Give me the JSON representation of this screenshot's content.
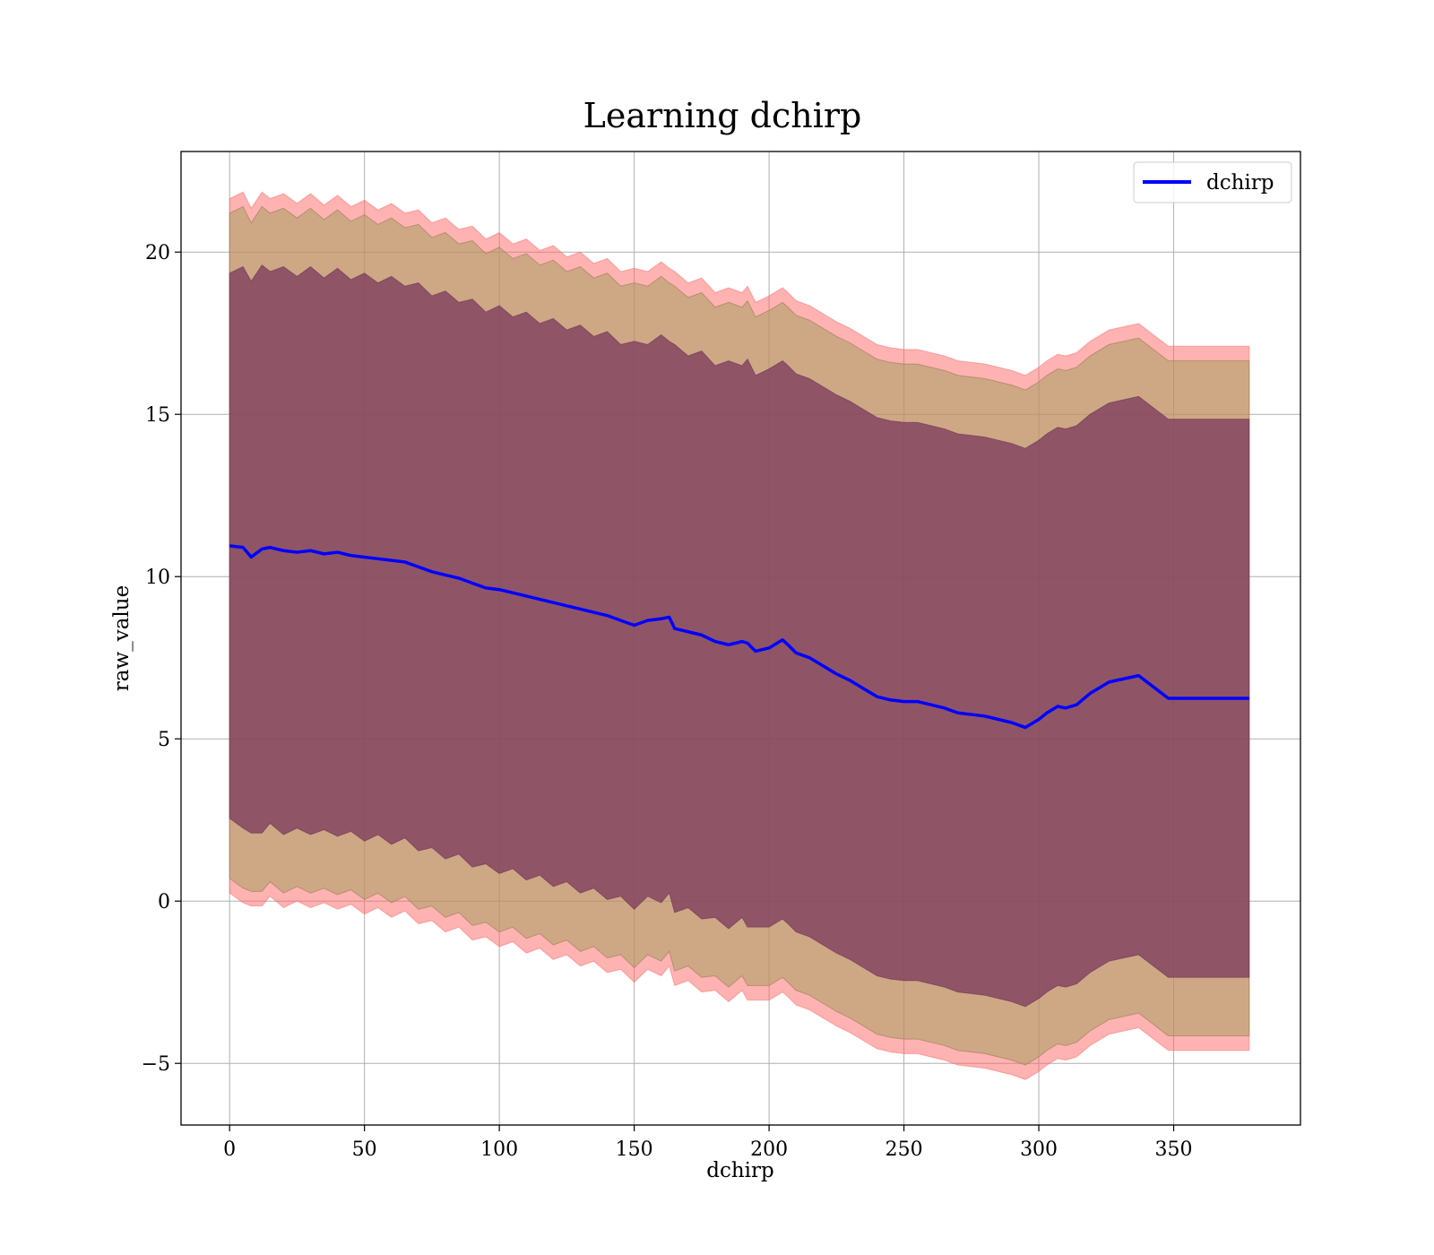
{
  "chart_data": {
    "type": "line",
    "title": "Learning dchirp",
    "xlabel": "dchirp",
    "ylabel": "raw_value",
    "xlim": [
      -18,
      397
    ],
    "ylim": [
      -6.9,
      23.1
    ],
    "xticks": [
      0,
      50,
      100,
      150,
      200,
      250,
      300,
      350
    ],
    "yticks": [
      -5,
      0,
      5,
      10,
      15,
      20
    ],
    "ytick_labels": [
      "−5",
      "0",
      "5",
      "10",
      "15",
      "20"
    ],
    "grid": true,
    "legend_position": "top-right",
    "colors": {
      "line": "#0000ff",
      "band_outer": "#ff6666",
      "band_middle": "#a5a060",
      "band_inner": "#7a3a5e",
      "grid": "#b0b0b0"
    },
    "series": [
      {
        "name": "dchirp",
        "x": [
          0,
          5,
          8,
          12,
          15,
          20,
          25,
          30,
          35,
          40,
          45,
          50,
          55,
          60,
          65,
          70,
          75,
          80,
          85,
          90,
          95,
          100,
          105,
          110,
          115,
          120,
          125,
          130,
          135,
          140,
          145,
          150,
          155,
          160,
          163,
          165,
          170,
          175,
          180,
          185,
          190,
          192,
          195,
          200,
          205,
          207,
          210,
          215,
          220,
          225,
          230,
          235,
          240,
          245,
          250,
          255,
          260,
          265,
          270,
          275,
          280,
          285,
          290,
          295,
          300,
          303,
          307,
          310,
          314,
          319,
          326,
          337,
          348,
          378
        ],
        "y": [
          10.95,
          10.9,
          10.6,
          10.85,
          10.9,
          10.8,
          10.75,
          10.8,
          10.7,
          10.75,
          10.65,
          10.6,
          10.55,
          10.5,
          10.45,
          10.3,
          10.15,
          10.05,
          9.95,
          9.8,
          9.65,
          9.6,
          9.5,
          9.4,
          9.3,
          9.2,
          9.1,
          9.0,
          8.9,
          8.8,
          8.65,
          8.5,
          8.65,
          8.7,
          8.75,
          8.4,
          8.3,
          8.2,
          8.0,
          7.9,
          8.0,
          7.95,
          7.7,
          7.8,
          8.05,
          7.9,
          7.65,
          7.5,
          7.25,
          7.0,
          6.8,
          6.55,
          6.3,
          6.2,
          6.15,
          6.15,
          6.05,
          5.95,
          5.8,
          5.75,
          5.7,
          5.6,
          5.5,
          5.35,
          5.6,
          5.8,
          6.0,
          5.95,
          6.05,
          6.4,
          6.75,
          6.95,
          6.25,
          6.25
        ]
      }
    ],
    "bands": {
      "inner_offset": [
        8.5,
        8.5,
        8.6,
        8.6,
        8.6,
        8.6,
        8.6,
        8.6,
        8.6,
        8.6,
        8.6,
        8.6,
        8.6,
        8.6,
        8.6,
        8.6,
        8.6,
        8.6,
        8.6,
        8.6,
        8.6,
        8.6,
        8.6,
        8.6,
        8.6,
        8.6,
        8.6,
        8.6,
        8.6,
        8.6,
        8.6,
        8.6,
        8.6,
        8.6,
        8.6,
        8.6,
        8.6,
        8.6,
        8.6,
        8.6,
        8.6,
        8.6,
        8.6,
        8.6,
        8.6,
        8.6,
        8.6,
        8.6,
        8.6,
        8.6,
        8.6,
        8.6,
        8.6,
        8.6,
        8.6,
        8.6,
        8.6,
        8.6,
        8.6,
        8.6,
        8.6,
        8.6,
        8.6,
        8.6,
        8.6,
        8.6,
        8.6,
        8.6,
        8.6,
        8.6,
        8.6,
        8.6,
        8.6,
        8.6
      ],
      "middle_offset": [
        10.35,
        10.35,
        10.4,
        10.4,
        10.4,
        10.4,
        10.4,
        10.4,
        10.4,
        10.4,
        10.4,
        10.4,
        10.4,
        10.4,
        10.4,
        10.4,
        10.4,
        10.4,
        10.4,
        10.4,
        10.4,
        10.4,
        10.4,
        10.4,
        10.4,
        10.4,
        10.4,
        10.4,
        10.4,
        10.4,
        10.4,
        10.4,
        10.4,
        10.4,
        10.4,
        10.4,
        10.4,
        10.4,
        10.4,
        10.4,
        10.4,
        10.4,
        10.4,
        10.4,
        10.4,
        10.4,
        10.4,
        10.4,
        10.4,
        10.4,
        10.4,
        10.4,
        10.4,
        10.4,
        10.4,
        10.4,
        10.4,
        10.4,
        10.4,
        10.4,
        10.4,
        10.4,
        10.4,
        10.4,
        10.4,
        10.4,
        10.4,
        10.4,
        10.4,
        10.4,
        10.4,
        10.4,
        10.4,
        10.4
      ],
      "outer_offset": [
        10.8,
        10.8,
        10.85,
        10.85,
        10.85,
        10.85,
        10.85,
        10.85,
        10.85,
        10.85,
        10.85,
        10.85,
        10.85,
        10.85,
        10.85,
        10.85,
        10.85,
        10.85,
        10.85,
        10.85,
        10.85,
        10.85,
        10.85,
        10.85,
        10.85,
        10.85,
        10.85,
        10.85,
        10.85,
        10.85,
        10.85,
        10.85,
        10.85,
        10.85,
        10.85,
        10.85,
        10.85,
        10.85,
        10.85,
        10.85,
        10.85,
        10.85,
        10.85,
        10.85,
        10.85,
        10.85,
        10.85,
        10.85,
        10.85,
        10.85,
        10.85,
        10.85,
        10.85,
        10.85,
        10.85,
        10.85,
        10.85,
        10.85,
        10.85,
        10.85,
        10.85,
        10.85,
        10.85,
        10.85,
        10.85,
        10.85,
        10.85,
        10.85,
        10.85,
        10.85,
        10.85,
        10.85,
        10.85,
        10.85
      ]
    }
  }
}
